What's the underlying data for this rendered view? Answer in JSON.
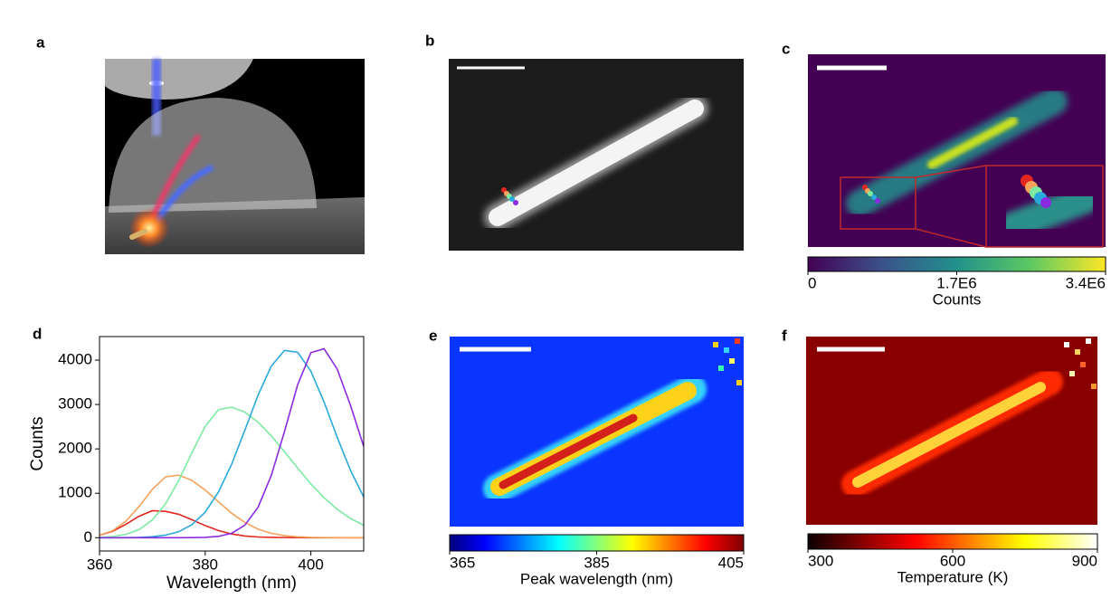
{
  "panel_labels": [
    "a",
    "b",
    "c",
    "d",
    "e",
    "f"
  ],
  "chart_data": [
    {
      "type": "colorbar",
      "xlabel": "Counts",
      "colormap": "viridis",
      "xlim": [
        0,
        3400000
      ],
      "xticks": [
        0,
        {
          "value": 1700000,
          "label": "1.7E6"
        },
        {
          "value": 3400000,
          "label": "3.4E6"
        }
      ]
    },
    {
      "type": "line",
      "xlabel": "Wavelength (nm)",
      "ylabel": "Counts",
      "x": [
        360,
        362.5,
        365,
        367.5,
        370,
        372.5,
        375,
        377.5,
        380,
        382.5,
        385,
        387.5,
        390,
        392.5,
        395,
        397.5,
        400,
        402.5,
        405,
        407.5,
        410
      ],
      "xlim": [
        360,
        410
      ],
      "xticks": [
        360,
        380,
        400
      ],
      "ylim": [
        -300,
        4530
      ],
      "yticks": [
        0,
        1000,
        2000,
        3000,
        4000
      ],
      "series": [
        {
          "color": "#e3261f",
          "values": [
            55,
            146,
            302,
            485,
            608,
            593,
            527,
            403,
            272,
            161,
            84,
            38,
            16,
            7,
            3,
            1,
            0,
            0,
            0,
            0,
            0
          ]
        },
        {
          "color": "#f5a25d",
          "values": [
            55,
            159,
            372,
            705,
            1090,
            1369,
            1409,
            1291,
            1072,
            810,
            552,
            343,
            192,
            98,
            45,
            19,
            7,
            3,
            1,
            0,
            0
          ]
        },
        {
          "color": "#7ceaa0",
          "values": [
            8,
            26,
            74,
            183,
            399,
            764,
            1290,
            1917,
            2506,
            2883,
            2940,
            2827,
            2603,
            2295,
            1938,
            1567,
            1213,
            899,
            637,
            433,
            281
          ]
        },
        {
          "color": "#2aa9dc",
          "values": [
            0,
            0,
            2,
            7,
            22,
            57,
            135,
            294,
            575,
            1025,
            1653,
            2420,
            3208,
            3862,
            4217,
            4176,
            3751,
            3055,
            2256,
            1517,
            918
          ]
        },
        {
          "color": "#8a2be2",
          "values": [
            0,
            0,
            0,
            0,
            0,
            0,
            0,
            1,
            7,
            29,
            98,
            282,
            684,
            1397,
            2387,
            3445,
            4168,
            4256,
            3795,
            2979,
            2057
          ]
        }
      ]
    },
    {
      "type": "colorbar",
      "xlabel": "Peak wavelength (nm)",
      "colormap": "jet",
      "xlim": [
        365,
        405
      ],
      "xticks": [
        365,
        385,
        405
      ]
    },
    {
      "type": "colorbar",
      "xlabel": "Temperature (K)",
      "colormap": "hot",
      "xlim": [
        300,
        900
      ],
      "xticks": [
        300,
        600,
        900
      ]
    }
  ]
}
